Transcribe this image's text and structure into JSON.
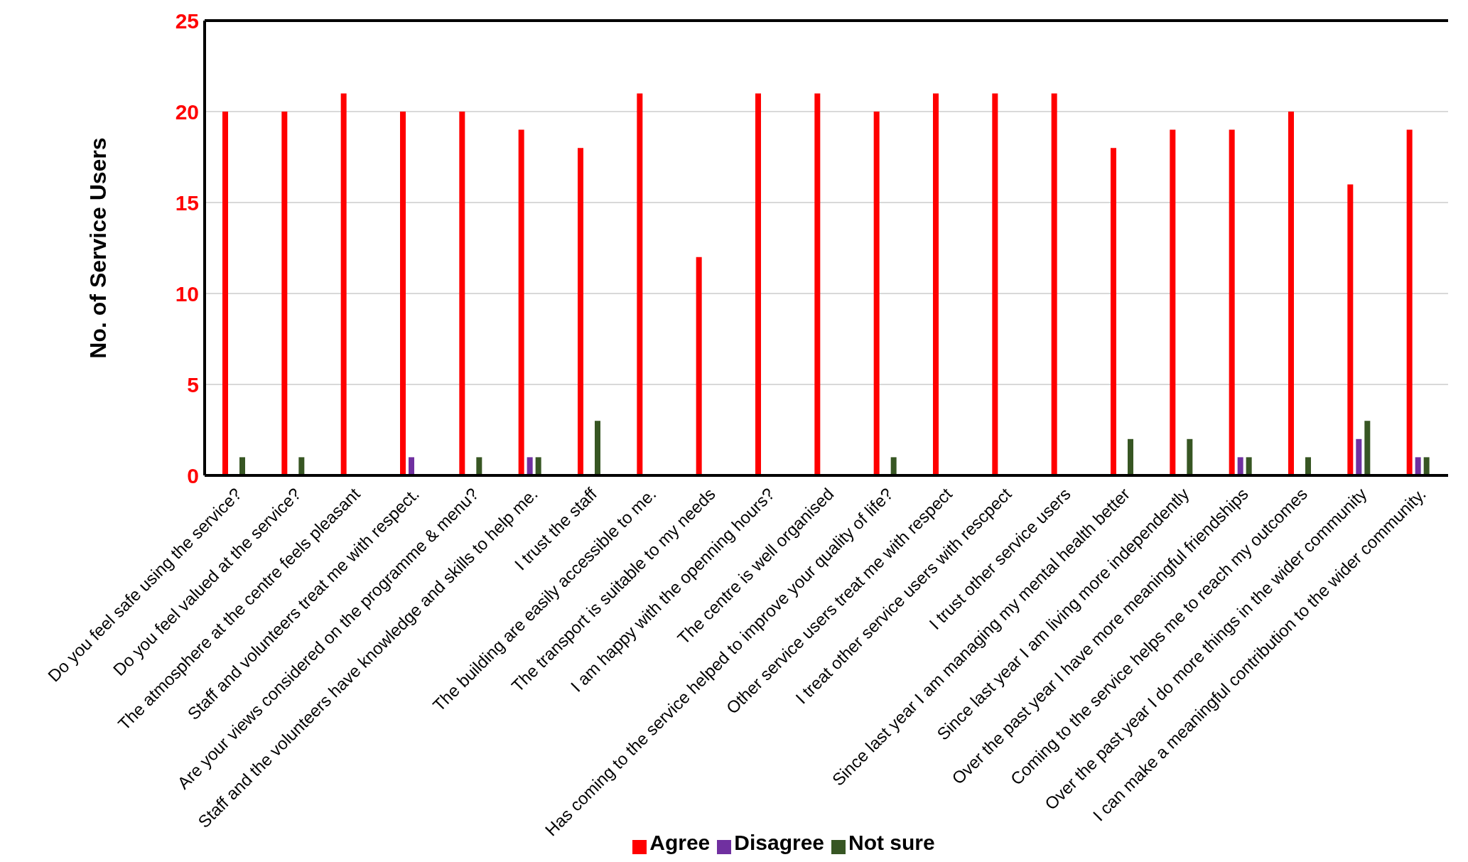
{
  "chart_data": {
    "type": "bar",
    "ylabel": "No. of Service Users",
    "categories": [
      "Do you feel safe using the service?",
      "Do you feel valued at the service?",
      "The atmosphere at the centre feels pleasant",
      "Staff and volunteers treat me with respect.",
      "Are your views considered on the programme & menu?",
      "Staff and the volunteers have knowledge and skills to help me.",
      "I trust the staff",
      "The building are easily accessible to me.",
      "The transport is suitable to my needs",
      "I am happy with the openning hours?",
      "The centre is well organised",
      "Has coming to the service helped to improve your quality of life?",
      "Other service users treat me with respect",
      "I treat other service users with rescpect",
      "I trust other service users",
      "Since last year I am managing my mental health better",
      "Since last year I am living more independently",
      "Over the past year I have more meaningful friendships",
      "Coming to the service helps me to reach my outcomes",
      "Over the past year I do more things in the wider community",
      "I can make a meaningful contribution to the wider community."
    ],
    "series": [
      {
        "name": "Agree",
        "color": "#ff0000",
        "values": [
          20,
          20,
          21,
          20,
          20,
          19,
          18,
          21,
          12,
          21,
          21,
          20,
          21,
          21,
          21,
          18,
          19,
          19,
          20,
          16,
          19
        ]
      },
      {
        "name": "Disagree",
        "color": "#7030a0",
        "values": [
          0,
          0,
          0,
          1,
          0,
          1,
          0,
          0,
          0,
          0,
          0,
          0,
          0,
          0,
          0,
          0,
          0,
          1,
          0,
          2,
          1
        ]
      },
      {
        "name": "Not sure",
        "color": "#375623",
        "values": [
          1,
          1,
          0,
          0,
          1,
          1,
          3,
          0,
          0,
          0,
          0,
          1,
          0,
          0,
          0,
          2,
          2,
          1,
          1,
          3,
          1
        ]
      }
    ],
    "ylim": [
      0,
      25
    ],
    "yticks": [
      0,
      5,
      10,
      15,
      20,
      25
    ],
    "grid": "y",
    "legend": "bottom"
  }
}
